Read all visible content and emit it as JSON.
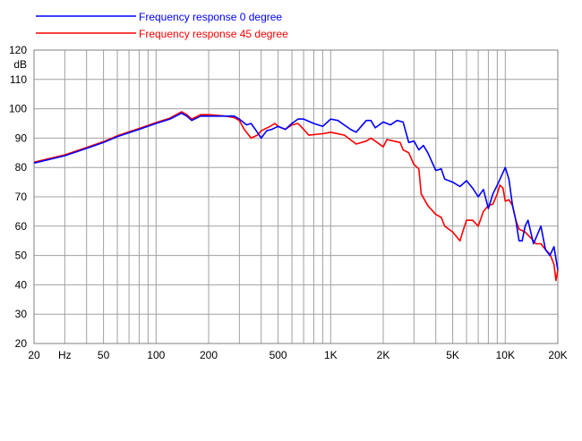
{
  "chart_data": {
    "type": "line",
    "title": "",
    "xlabel": "Hz",
    "ylabel": "dB",
    "x_scale": "log",
    "xlim": [
      20,
      20000
    ],
    "ylim": [
      20,
      120
    ],
    "grid": true,
    "legend_placement": "top-left",
    "x_tick_labels": [
      {
        "value": 20,
        "label": "20"
      },
      {
        "value": 30,
        "label": "Hz"
      },
      {
        "value": 50,
        "label": "50"
      },
      {
        "value": 100,
        "label": "100"
      },
      {
        "value": 200,
        "label": "200"
      },
      {
        "value": 500,
        "label": "500"
      },
      {
        "value": 1000,
        "label": "1K"
      },
      {
        "value": 2000,
        "label": "2K"
      },
      {
        "value": 5000,
        "label": "5K"
      },
      {
        "value": 10000,
        "label": "10K"
      },
      {
        "value": 20000,
        "label": "20K"
      }
    ],
    "y_ticks": [
      20,
      30,
      40,
      50,
      60,
      70,
      80,
      90,
      100,
      110,
      120
    ],
    "series": [
      {
        "name": "Frequency response 0 degree",
        "color": "#0000ff",
        "points": [
          [
            20,
            81.5
          ],
          [
            30,
            84
          ],
          [
            40,
            86.5
          ],
          [
            50,
            88.5
          ],
          [
            60,
            90.5
          ],
          [
            80,
            93
          ],
          [
            100,
            95
          ],
          [
            120,
            96.5
          ],
          [
            140,
            98.5
          ],
          [
            150,
            97.5
          ],
          [
            160,
            96
          ],
          [
            180,
            97.5
          ],
          [
            200,
            97.5
          ],
          [
            250,
            97.5
          ],
          [
            280,
            97.5
          ],
          [
            300,
            96.5
          ],
          [
            330,
            94.5
          ],
          [
            350,
            95
          ],
          [
            370,
            93
          ],
          [
            400,
            90
          ],
          [
            430,
            92.5
          ],
          [
            460,
            93
          ],
          [
            500,
            94
          ],
          [
            550,
            93
          ],
          [
            600,
            95
          ],
          [
            650,
            96.5
          ],
          [
            700,
            96.5
          ],
          [
            800,
            95
          ],
          [
            900,
            94
          ],
          [
            1000,
            96.5
          ],
          [
            1100,
            96
          ],
          [
            1300,
            93
          ],
          [
            1400,
            92
          ],
          [
            1600,
            96
          ],
          [
            1700,
            96
          ],
          [
            1800,
            93.5
          ],
          [
            2000,
            95.5
          ],
          [
            2200,
            94.5
          ],
          [
            2400,
            96
          ],
          [
            2600,
            95.5
          ],
          [
            2800,
            88.5
          ],
          [
            3000,
            89
          ],
          [
            3200,
            86
          ],
          [
            3400,
            87.5
          ],
          [
            3600,
            85
          ],
          [
            4000,
            79
          ],
          [
            4300,
            79.5
          ],
          [
            4500,
            76
          ],
          [
            5000,
            75
          ],
          [
            5500,
            73.5
          ],
          [
            6000,
            75.5
          ],
          [
            6500,
            73
          ],
          [
            7000,
            70
          ],
          [
            7500,
            72.5
          ],
          [
            8000,
            66
          ],
          [
            8500,
            71
          ],
          [
            9000,
            74
          ],
          [
            10000,
            80
          ],
          [
            10500,
            76
          ],
          [
            11000,
            67
          ],
          [
            11500,
            62
          ],
          [
            12000,
            55
          ],
          [
            12500,
            55
          ],
          [
            13000,
            60
          ],
          [
            13500,
            62
          ],
          [
            14500,
            54
          ],
          [
            15000,
            56
          ],
          [
            16000,
            60
          ],
          [
            17000,
            52
          ],
          [
            18000,
            50
          ],
          [
            19000,
            53
          ],
          [
            20000,
            45
          ]
        ]
      },
      {
        "name": "Frequency response 45 degree",
        "color": "#ff0000",
        "points": [
          [
            20,
            81.8
          ],
          [
            30,
            84.3
          ],
          [
            40,
            86.8
          ],
          [
            50,
            88.8
          ],
          [
            60,
            90.8
          ],
          [
            80,
            93.3
          ],
          [
            100,
            95.3
          ],
          [
            120,
            96.8
          ],
          [
            140,
            99
          ],
          [
            150,
            98
          ],
          [
            160,
            96.5
          ],
          [
            180,
            98
          ],
          [
            200,
            98
          ],
          [
            250,
            97.5
          ],
          [
            280,
            97
          ],
          [
            300,
            96
          ],
          [
            320,
            93
          ],
          [
            350,
            90
          ],
          [
            380,
            91
          ],
          [
            400,
            92.5
          ],
          [
            450,
            94
          ],
          [
            480,
            95
          ],
          [
            500,
            94
          ],
          [
            550,
            93
          ],
          [
            600,
            94.5
          ],
          [
            650,
            95
          ],
          [
            700,
            93
          ],
          [
            750,
            91
          ],
          [
            900,
            91.5
          ],
          [
            1000,
            92
          ],
          [
            1200,
            91
          ],
          [
            1400,
            88
          ],
          [
            1600,
            89
          ],
          [
            1700,
            90
          ],
          [
            1800,
            89
          ],
          [
            2000,
            87
          ],
          [
            2100,
            89.5
          ],
          [
            2300,
            89
          ],
          [
            2500,
            88.5
          ],
          [
            2600,
            86
          ],
          [
            2800,
            85
          ],
          [
            3000,
            81
          ],
          [
            3200,
            79.5
          ],
          [
            3300,
            71
          ],
          [
            3600,
            67
          ],
          [
            4000,
            64
          ],
          [
            4300,
            63
          ],
          [
            4500,
            60
          ],
          [
            5000,
            58
          ],
          [
            5500,
            55
          ],
          [
            5700,
            58
          ],
          [
            6000,
            62
          ],
          [
            6500,
            62
          ],
          [
            7000,
            60
          ],
          [
            7500,
            65
          ],
          [
            8000,
            67
          ],
          [
            8500,
            67.5
          ],
          [
            9000,
            71
          ],
          [
            9300,
            74
          ],
          [
            9700,
            73
          ],
          [
            10000,
            68.5
          ],
          [
            10500,
            69
          ],
          [
            11000,
            67
          ],
          [
            11500,
            62
          ],
          [
            12000,
            59
          ],
          [
            13000,
            58
          ],
          [
            14000,
            56
          ],
          [
            15000,
            54
          ],
          [
            16000,
            54
          ],
          [
            17000,
            52
          ],
          [
            18000,
            50.5
          ],
          [
            19000,
            47
          ],
          [
            19500,
            41.5
          ],
          [
            20000,
            45
          ]
        ]
      }
    ]
  }
}
